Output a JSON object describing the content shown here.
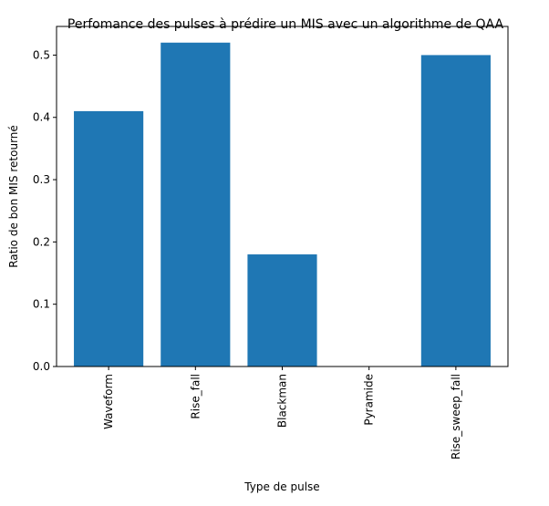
{
  "chart_data": {
    "type": "bar",
    "title": "Perfomance des pulses à prédire un MIS avec un algorithme de QAA",
    "xlabel": "Type de pulse",
    "ylabel": "Ratio de bon MIS retourné",
    "categories": [
      "Waveform",
      "Rise_fall",
      "Blackman",
      "Pyramide",
      "Rise_sweep_fall"
    ],
    "values": [
      0.41,
      0.52,
      0.18,
      0.0,
      0.5
    ],
    "ylim": [
      0,
      0.546
    ],
    "yticks": [
      "0.0",
      "0.1",
      "0.2",
      "0.3",
      "0.4",
      "0.5"
    ],
    "grid": false,
    "bar_color": "#1f77b4"
  }
}
